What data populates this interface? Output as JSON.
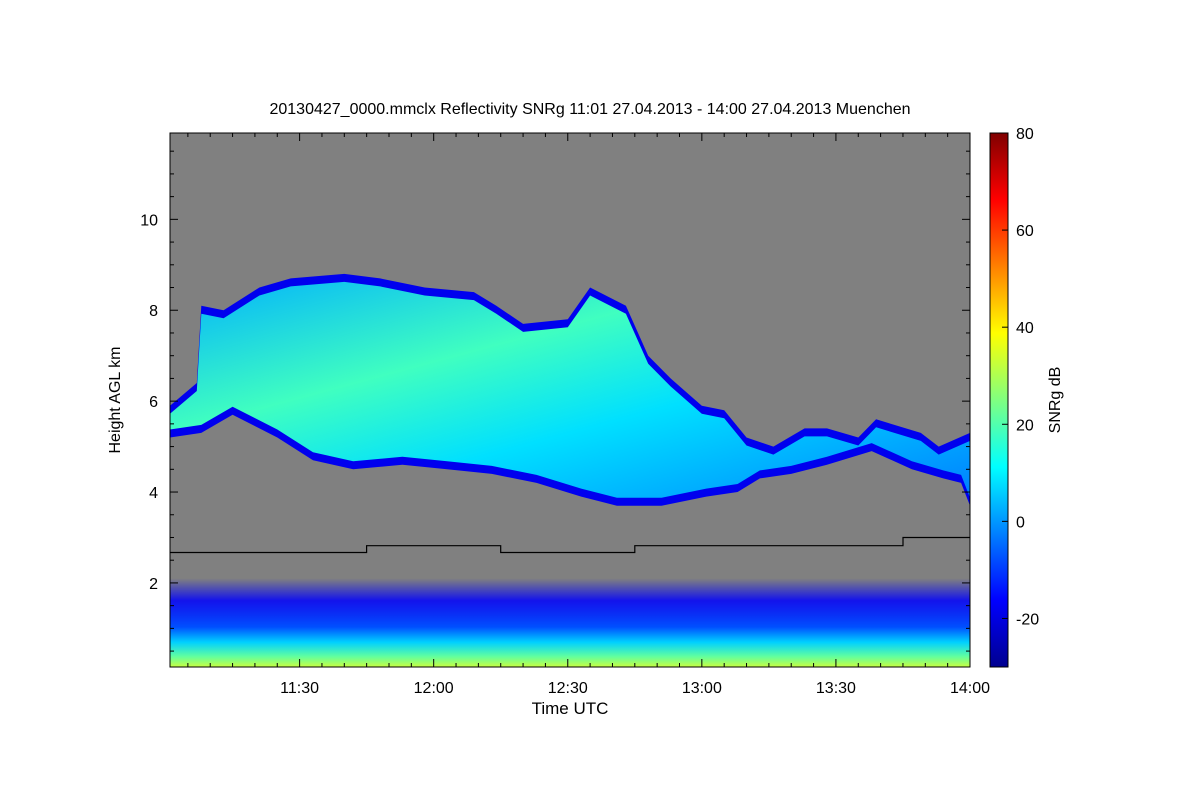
{
  "chart_data": {
    "type": "heatmap",
    "title": "20130427_0000.mmclx Reflectivity SNRg   11:01 27.04.2013 - 14:00 27.04.2013 Muenchen",
    "xlabel": "Time UTC",
    "ylabel": "Height AGL km",
    "x_range_minutes_utc": [
      661,
      840
    ],
    "ylim": [
      0.15,
      11.9
    ],
    "x_ticks": [
      {
        "label": "11:30",
        "minutes": 690
      },
      {
        "label": "12:00",
        "minutes": 720
      },
      {
        "label": "12:30",
        "minutes": 750
      },
      {
        "label": "13:00",
        "minutes": 780
      },
      {
        "label": "13:30",
        "minutes": 810
      },
      {
        "label": "14:00",
        "minutes": 840
      }
    ],
    "y_ticks": [
      {
        "label": "2",
        "value": 2
      },
      {
        "label": "4",
        "value": 4
      },
      {
        "label": "6",
        "value": 6
      },
      {
        "label": "8",
        "value": 8
      },
      {
        "label": "10",
        "value": 10
      }
    ],
    "colorbar": {
      "label": "SNRg dB",
      "range": [
        -30,
        80
      ],
      "ticks": [
        {
          "label": "-20",
          "value": -20
        },
        {
          "label": "0",
          "value": 0
        },
        {
          "label": "20",
          "value": 20
        },
        {
          "label": "40",
          "value": 40
        },
        {
          "label": "60",
          "value": 60
        },
        {
          "label": "80",
          "value": 80
        }
      ],
      "colormap": [
        "#00008f",
        "#0000ff",
        "#0080ff",
        "#00ffff",
        "#80ff80",
        "#ffff00",
        "#ff8000",
        "#ff0000",
        "#800000"
      ]
    },
    "background_color": "#808080",
    "cloud_layer": {
      "description": "main reflectivity echo",
      "top_km": [
        [
          661,
          5.9
        ],
        [
          667,
          6.4
        ],
        [
          668,
          8.1
        ],
        [
          673,
          8.0
        ],
        [
          681,
          8.5
        ],
        [
          688,
          8.7
        ],
        [
          700,
          8.8
        ],
        [
          708,
          8.7
        ],
        [
          718,
          8.5
        ],
        [
          729,
          8.4
        ],
        [
          734,
          8.1
        ],
        [
          740,
          7.7
        ],
        [
          750,
          7.8
        ],
        [
          755,
          8.5
        ],
        [
          763,
          8.1
        ],
        [
          768,
          7.0
        ],
        [
          773,
          6.5
        ],
        [
          780,
          5.9
        ],
        [
          785,
          5.8
        ],
        [
          790,
          5.2
        ],
        [
          796,
          5.0
        ],
        [
          803,
          5.4
        ],
        [
          808,
          5.4
        ],
        [
          815,
          5.2
        ],
        [
          819,
          5.6
        ],
        [
          829,
          5.3
        ],
        [
          833,
          5.0
        ],
        [
          840,
          5.3
        ]
      ],
      "base_km": [
        [
          661,
          5.2
        ],
        [
          668,
          5.3
        ],
        [
          675,
          5.7
        ],
        [
          685,
          5.2
        ],
        [
          693,
          4.7
        ],
        [
          702,
          4.5
        ],
        [
          713,
          4.6
        ],
        [
          723,
          4.5
        ],
        [
          733,
          4.4
        ],
        [
          743,
          4.2
        ],
        [
          753,
          3.9
        ],
        [
          761,
          3.7
        ],
        [
          771,
          3.7
        ],
        [
          781,
          3.9
        ],
        [
          788,
          4.0
        ],
        [
          793,
          4.3
        ],
        [
          800,
          4.4
        ],
        [
          808,
          4.6
        ],
        [
          818,
          4.9
        ],
        [
          827,
          4.5
        ],
        [
          834,
          4.3
        ],
        [
          838,
          4.2
        ],
        [
          840,
          3.7
        ]
      ],
      "max_snr_db": 22
    },
    "series": [
      {
        "name": "cloud-base line (black)",
        "type": "step",
        "x_minutes": [
          661,
          705,
          705,
          735,
          735,
          765,
          765,
          825,
          825,
          840
        ],
        "y_km": [
          2.67,
          2.67,
          2.82,
          2.82,
          2.67,
          2.67,
          2.82,
          2.82,
          3.0,
          3.0
        ]
      }
    ],
    "boundary_layer": {
      "description": "low-level clutter/aerosol echo",
      "height_range_km": [
        0.15,
        2.1
      ],
      "snr_db_range": [
        -25,
        35
      ]
    }
  }
}
